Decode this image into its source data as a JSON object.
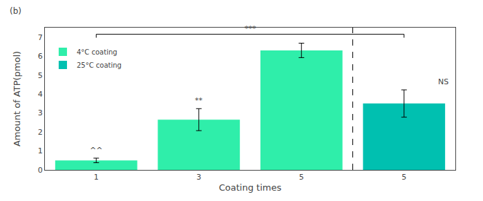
{
  "chart_data": {
    "type": "bar",
    "xlabel": "Coating times",
    "ylabel": "Amount of ATP(pmol)",
    "categories": [
      "1",
      "3",
      "5",
      "5"
    ],
    "series": [
      {
        "name": "4°C coating",
        "color": "#2feeaa",
        "values": [
          0.5,
          2.65,
          6.3,
          null
        ],
        "errors": [
          0.12,
          0.58,
          0.38,
          null
        ]
      },
      {
        "name": "25°C coating",
        "color": "#00c0b0",
        "values": [
          null,
          null,
          null,
          3.5
        ],
        "errors": [
          null,
          null,
          null,
          0.72
        ]
      }
    ],
    "ylim": [
      0,
      7.5
    ],
    "yticks": [
      0,
      1,
      2,
      3,
      4,
      5,
      6,
      7
    ],
    "grid": false,
    "legend": "upper left",
    "annotations": [
      {
        "text": "^^",
        "bar": 0
      },
      {
        "text": "**",
        "bar": 1
      },
      {
        "text": "NS",
        "bar": 3
      },
      {
        "text": "***",
        "bracket": [
          0,
          3
        ],
        "y": 7.15
      },
      {
        "text": "(b)"
      }
    ]
  }
}
